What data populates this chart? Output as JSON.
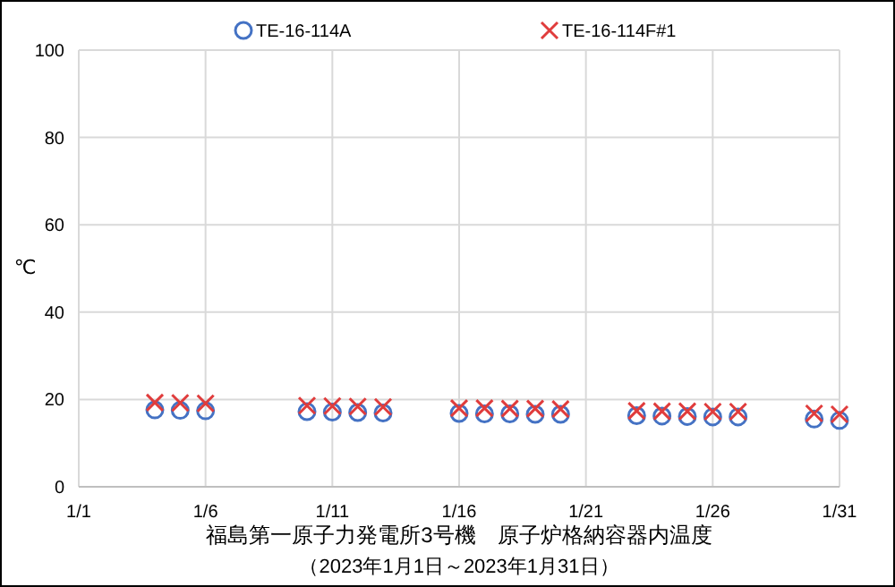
{
  "chart_data": {
    "type": "scatter",
    "title": "福島第一原子力発電所3号機　原子炉格納容器内温度",
    "subtitle": "（2023年1月1日～2023年1月31日）",
    "ylabel": "℃",
    "x": [
      "2023-01-04",
      "2023-01-05",
      "2023-01-06",
      "2023-01-10",
      "2023-01-11",
      "2023-01-12",
      "2023-01-13",
      "2023-01-16",
      "2023-01-17",
      "2023-01-18",
      "2023-01-19",
      "2023-01-20",
      "2023-01-23",
      "2023-01-24",
      "2023-01-25",
      "2023-01-26",
      "2023-01-27",
      "2023-01-30",
      "2023-01-31"
    ],
    "series": [
      {
        "name": "TE-16-114A",
        "color": "#4472c4",
        "marker": "circle",
        "values": [
          17.6,
          17.5,
          17.4,
          17.2,
          17.1,
          17.0,
          16.9,
          16.8,
          16.7,
          16.7,
          16.6,
          16.6,
          16.3,
          16.2,
          16.1,
          16.0,
          16.0,
          15.5,
          15.2
        ]
      },
      {
        "name": "TE-16-114F#1",
        "color": "#e03c3c",
        "marker": "cross",
        "values": [
          19.3,
          19.2,
          19.1,
          18.6,
          18.5,
          18.4,
          18.3,
          18.0,
          18.0,
          17.9,
          17.9,
          17.8,
          17.4,
          17.3,
          17.3,
          17.2,
          17.2,
          16.8,
          16.6
        ]
      }
    ],
    "xlim": [
      "2023-01-01",
      "2023-01-31"
    ],
    "xticks": [
      {
        "value": "2023-01-01",
        "label": "1/1"
      },
      {
        "value": "2023-01-06",
        "label": "1/6"
      },
      {
        "value": "2023-01-11",
        "label": "1/11"
      },
      {
        "value": "2023-01-16",
        "label": "1/16"
      },
      {
        "value": "2023-01-21",
        "label": "1/21"
      },
      {
        "value": "2023-01-26",
        "label": "1/26"
      },
      {
        "value": "2023-01-31",
        "label": "1/31"
      }
    ],
    "ylim": [
      0,
      100
    ],
    "yticks": [
      0,
      20,
      40,
      60,
      80,
      100
    ],
    "grid": true,
    "legend": "top"
  }
}
